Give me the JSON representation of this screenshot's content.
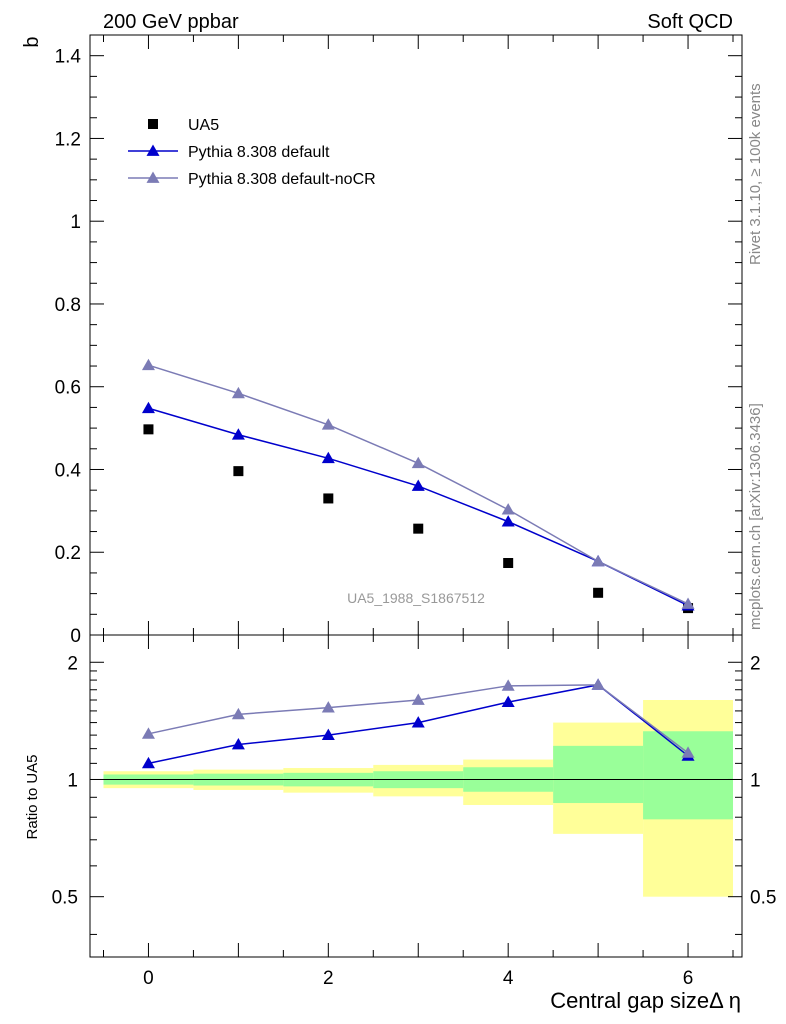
{
  "header": {
    "left": "200 GeV ppbar",
    "right": "Soft QCD"
  },
  "side_labels": {
    "rivet": "Rivet 3.1.10, ≥ 100k events",
    "mcplots": "mcplots.cern.ch [arXiv:1306.3436]"
  },
  "chart_data": [
    {
      "type": "scatter",
      "panel": "main",
      "ylabel": "b",
      "annotation": "UA5_1988_S1867512",
      "xlim": [
        -0.65,
        6.6
      ],
      "ylim": [
        0,
        1.45
      ],
      "y_ticks": [
        "0",
        "0.2",
        "0.4",
        "0.6",
        "0.8",
        "1",
        "1.2",
        "1.4"
      ],
      "x": [
        0,
        1,
        2,
        3,
        4,
        5,
        6
      ],
      "legend_position": "top-left",
      "series": [
        {
          "name": "UA5",
          "marker": "square",
          "color": "#000000",
          "values": [
            0.497,
            0.396,
            0.33,
            0.257,
            0.174,
            0.102,
            0.065
          ]
        },
        {
          "name": "Pythia 8.308 default",
          "marker": "triangle",
          "color": "#0000cc",
          "values": [
            0.548,
            0.484,
            0.427,
            0.36,
            0.274,
            0.178,
            0.071
          ]
        },
        {
          "name": "Pythia 8.308 default-noCR",
          "marker": "triangle",
          "color": "#7b7bb5",
          "values": [
            0.652,
            0.584,
            0.508,
            0.415,
            0.303,
            0.178,
            0.075
          ]
        }
      ]
    },
    {
      "type": "line",
      "panel": "ratio",
      "ylabel": "Ratio to UA5",
      "xlabel": "Central gap sizeΔ η",
      "xlim": [
        -0.65,
        6.6
      ],
      "ylim": [
        0.35,
        2.35
      ],
      "y_ticks": [
        "0.5",
        "1",
        "2"
      ],
      "x_ticks": [
        "0",
        "2",
        "4",
        "6"
      ],
      "x": [
        0,
        1,
        2,
        3,
        4,
        5,
        6
      ],
      "bands": {
        "yellow": [
          [
            0.95,
            1.05
          ],
          [
            0.94,
            1.06
          ],
          [
            0.925,
            1.07
          ],
          [
            0.905,
            1.09
          ],
          [
            0.86,
            1.125
          ],
          [
            0.725,
            1.4
          ],
          [
            0.5,
            1.6
          ]
        ],
        "green": [
          [
            0.97,
            1.03
          ],
          [
            0.965,
            1.035
          ],
          [
            0.96,
            1.04
          ],
          [
            0.95,
            1.05
          ],
          [
            0.93,
            1.075
          ],
          [
            0.87,
            1.22
          ],
          [
            0.79,
            1.33
          ]
        ]
      },
      "series": [
        {
          "name": "Pythia 8.308 default",
          "color": "#0000cc",
          "values": [
            1.1,
            1.23,
            1.3,
            1.4,
            1.58,
            1.75,
            1.15
          ]
        },
        {
          "name": "Pythia 8.308 default-noCR",
          "color": "#7b7bb5",
          "values": [
            1.31,
            1.47,
            1.53,
            1.6,
            1.74,
            1.75,
            1.17
          ]
        }
      ]
    }
  ]
}
